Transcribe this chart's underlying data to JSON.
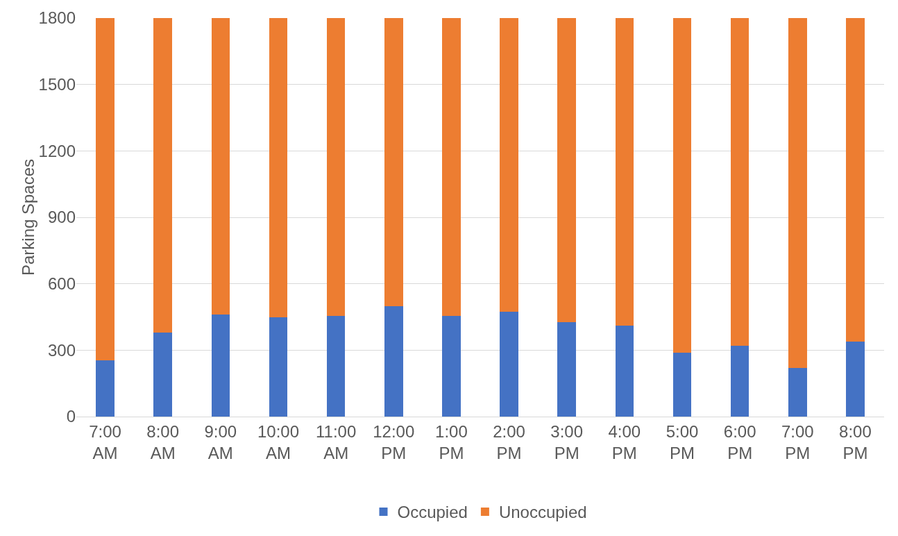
{
  "chart_data": {
    "type": "bar",
    "stacked": true,
    "ylabel": "Parking Spaces",
    "categories": [
      "7:00 AM",
      "8:00 AM",
      "9:00 AM",
      "10:00 AM",
      "11:00 AM",
      "12:00 PM",
      "1:00 PM",
      "2:00 PM",
      "3:00 PM",
      "4:00 PM",
      "5:00 PM",
      "6:00 PM",
      "7:00 PM",
      "8:00 PM"
    ],
    "series": [
      {
        "name": "Occupied",
        "color": "#4472c4",
        "values": [
          255,
          380,
          460,
          450,
          455,
          500,
          455,
          475,
          425,
          410,
          290,
          320,
          220,
          340
        ]
      },
      {
        "name": "Unoccupied",
        "color": "#ed7d31",
        "values": [
          1545,
          1420,
          1340,
          1350,
          1345,
          1300,
          1345,
          1325,
          1375,
          1390,
          1510,
          1480,
          1580,
          1460
        ]
      }
    ],
    "ylim": [
      0,
      1800
    ],
    "yticks": [
      0,
      300,
      600,
      900,
      1200,
      1500,
      1800
    ],
    "grid": "y",
    "legend": "bottom"
  }
}
